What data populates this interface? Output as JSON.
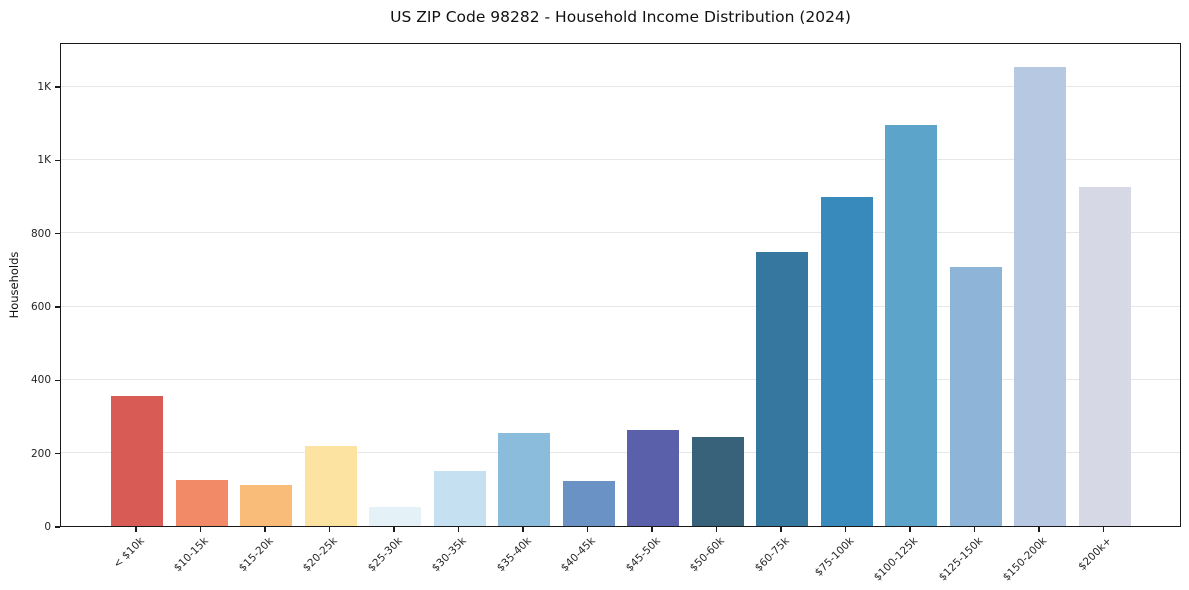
{
  "title": "US ZIP Code 98282 - Household Income Distribution (2024)",
  "colors": {
    "background": "#ffffff",
    "grid": "#e7e7e7",
    "axis": "#1a1a1a",
    "text": "#262626"
  },
  "chart_data": {
    "type": "bar",
    "title": "US ZIP Code 98282 - Household Income Distribution (2024)",
    "xlabel": "",
    "ylabel": "Households",
    "categories": [
      "< $10k",
      "$10-15k",
      "$15-20k",
      "$20-25k",
      "$25-30k",
      "$30-35k",
      "$35-40k",
      "$40-45k",
      "$45-50k",
      "$50-60k",
      "$60-75k",
      "$75-100k",
      "$100-125k",
      "$125-150k",
      "$150-200k",
      "$200k+"
    ],
    "values": [
      355,
      125,
      113,
      217,
      51,
      149,
      253,
      124,
      263,
      242,
      747,
      897,
      1093,
      706,
      1252,
      924
    ],
    "bar_colors": [
      "#d85c55",
      "#f28a67",
      "#fabd79",
      "#fde3a1",
      "#e4f1f6",
      "#c5e0f0",
      "#8cbcdc",
      "#6a92c5",
      "#5a60aa",
      "#37627a",
      "#35779f",
      "#388abd",
      "#5ca4ca",
      "#8eb5d8",
      "#b7c8e2",
      "#d6d8e6"
    ],
    "ylim": [
      0,
      1320
    ],
    "ytick_values": [
      0,
      200,
      400,
      600,
      800,
      1000,
      1200
    ],
    "ytick_labels": [
      "0",
      "200",
      "400",
      "600",
      "800",
      "1K",
      "1K"
    ],
    "x_tick_rotation_deg": 45,
    "grid": "horizontal",
    "legend": "none"
  }
}
